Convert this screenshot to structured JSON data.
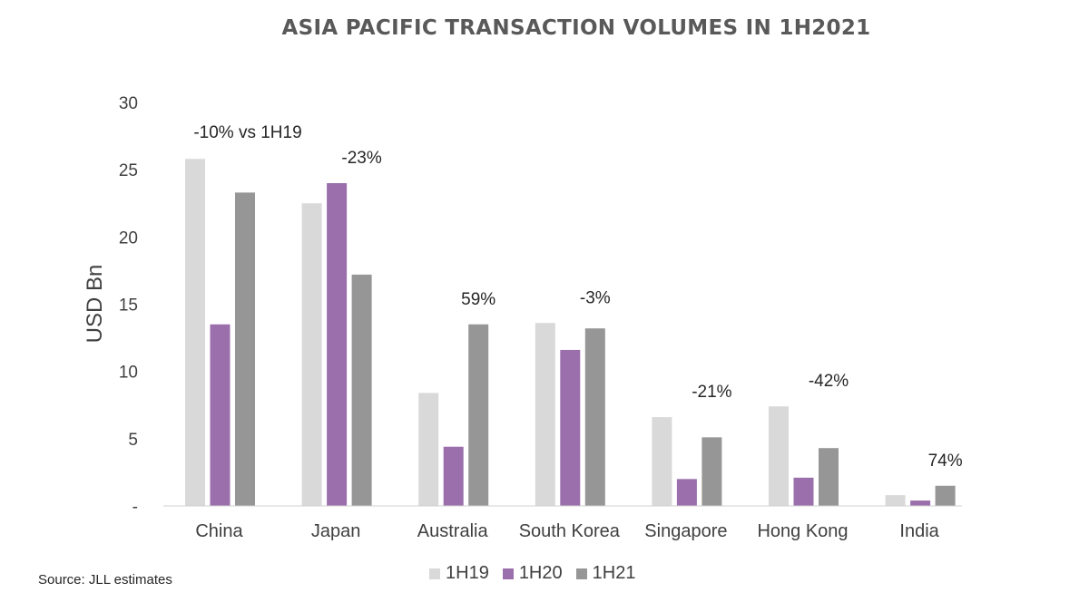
{
  "colors": {
    "1H19": "#d9d9d9",
    "1H20": "#9a6fab",
    "1H21": "#969696"
  },
  "source": "Source:  JLL estimates",
  "chart_data": {
    "type": "bar",
    "title": "ASIA PACIFIC TRANSACTION VOLUMES IN 1H2021",
    "ylabel": "USD Bn",
    "xlabel": "",
    "ylim": [
      0,
      30
    ],
    "yticks": [
      "-",
      "5",
      "10",
      "15",
      "20",
      "25",
      "30"
    ],
    "categories": [
      "China",
      "Japan",
      "Australia",
      "South Korea",
      "Singapore",
      "Hong Kong",
      "India"
    ],
    "series": [
      {
        "name": "1H19",
        "values": [
          25.8,
          22.5,
          8.4,
          13.6,
          6.6,
          7.4,
          0.8
        ]
      },
      {
        "name": "1H20",
        "values": [
          13.5,
          24.0,
          4.4,
          11.6,
          2.0,
          2.1,
          0.4
        ]
      },
      {
        "name": "1H21",
        "values": [
          23.3,
          17.2,
          13.5,
          13.2,
          5.1,
          4.3,
          1.5
        ]
      }
    ],
    "annotations": [
      "-10% vs 1H19",
      "-23%",
      "59%",
      "-3%",
      "-21%",
      "-42%",
      "74%"
    ],
    "legend_position": "bottom",
    "grid": false
  }
}
